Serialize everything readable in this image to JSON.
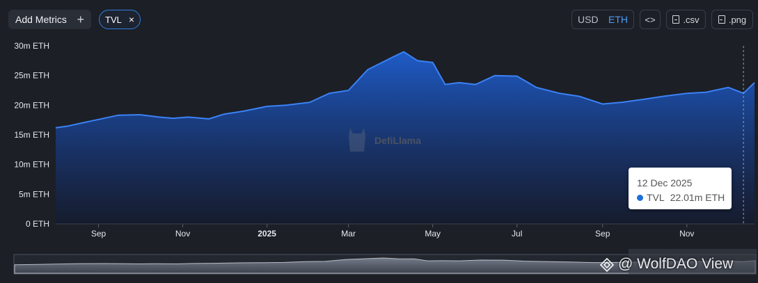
{
  "toolbar": {
    "add_metrics_label": "Add Metrics",
    "add_metrics_icon": "+",
    "active_metric_label": "TVL",
    "remove_icon": "×",
    "unit_usd": "USD",
    "unit_eth": "ETH",
    "embed_icon": "<>",
    "csv_label": ".csv",
    "png_label": ".png"
  },
  "tooltip": {
    "date": "12 Dec 2025",
    "series": "TVL",
    "value": "22.01m ETH"
  },
  "watermark": "DefiLlama",
  "overlay_text": "@ WolfDAO View",
  "colors": {
    "background": "#1c1f26",
    "line": "#3b82f6",
    "accent": "#4f9cf9"
  },
  "chart_data": {
    "type": "area",
    "series": [
      {
        "name": "TVL",
        "x": [
          "2024-08-01",
          "2024-08-10",
          "2024-08-20",
          "2024-09-01",
          "2024-09-15",
          "2024-10-01",
          "2024-10-15",
          "2024-10-25",
          "2024-11-05",
          "2024-11-20",
          "2024-12-01",
          "2024-12-15",
          "2025-01-01",
          "2025-01-15",
          "2025-02-01",
          "2025-02-15",
          "2025-03-01",
          "2025-03-15",
          "2025-04-01",
          "2025-04-10",
          "2025-04-20",
          "2025-05-01",
          "2025-05-10",
          "2025-05-20",
          "2025-06-01",
          "2025-06-15",
          "2025-07-01",
          "2025-07-15",
          "2025-08-01",
          "2025-08-15",
          "2025-09-01",
          "2025-09-15",
          "2025-10-01",
          "2025-10-15",
          "2025-11-01",
          "2025-11-15",
          "2025-12-01",
          "2025-12-12",
          "2025-12-20"
        ],
        "y": [
          16.2,
          16.5,
          17.0,
          17.6,
          18.3,
          18.4,
          18.0,
          17.8,
          18.0,
          17.7,
          18.5,
          19.0,
          19.8,
          20.0,
          20.5,
          22.0,
          22.5,
          26.0,
          28.0,
          29.0,
          27.5,
          27.2,
          23.5,
          23.8,
          23.5,
          25.0,
          24.9,
          23.0,
          22.0,
          21.5,
          20.2,
          20.5,
          21.0,
          21.5,
          22.0,
          22.2,
          23.0,
          22.01,
          23.8
        ]
      }
    ],
    "x_tick_labels": [
      "Sep",
      "Nov",
      "2025",
      "Mar",
      "May",
      "Jul",
      "Sep",
      "Nov"
    ],
    "y_tick_labels": [
      "0 ETH",
      "5m ETH",
      "10m ETH",
      "15m ETH",
      "20m ETH",
      "25m ETH",
      "30m ETH"
    ],
    "ylim": [
      0,
      30
    ],
    "xlim": [
      "2024-08-01",
      "2025-12-20"
    ],
    "grid": false,
    "legend": "none"
  }
}
